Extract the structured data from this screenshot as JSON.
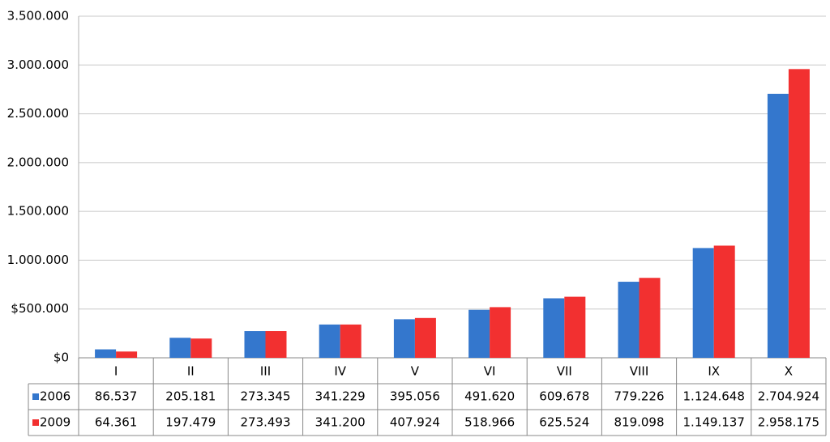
{
  "chart_data": {
    "type": "bar",
    "categories": [
      "I",
      "II",
      "III",
      "IV",
      "V",
      "VI",
      "VII",
      "VIII",
      "IX",
      "X"
    ],
    "series": [
      {
        "name": "2006",
        "color": "#3477cd",
        "values": [
          86537,
          205181,
          273345,
          341229,
          395056,
          491620,
          609678,
          779226,
          1124648,
          2704924
        ],
        "value_labels": [
          "86.537",
          "205.181",
          "273.345",
          "341.229",
          "395.056",
          "491.620",
          "609.678",
          "779.226",
          "1.124.648",
          "2.704.924"
        ]
      },
      {
        "name": "2009",
        "color": "#f23030",
        "values": [
          64361,
          197479,
          273493,
          341200,
          407924,
          518966,
          625524,
          819098,
          1149137,
          2958175
        ],
        "value_labels": [
          "64.361",
          "197.479",
          "273.493",
          "341.200",
          "407.924",
          "518.966",
          "625.524",
          "819.098",
          "1.149.137",
          "2.958.175"
        ]
      }
    ],
    "ylim": [
      0,
      3500000
    ],
    "yticks": [
      {
        "value": 0,
        "label": "$0"
      },
      {
        "value": 500000,
        "label": "$500.000"
      },
      {
        "value": 1000000,
        "label": "1.000.000"
      },
      {
        "value": 1500000,
        "label": "1.500.000"
      },
      {
        "value": 2000000,
        "label": "2.000.000"
      },
      {
        "value": 2500000,
        "label": "2.500.000"
      },
      {
        "value": 3000000,
        "label": "3.000.000"
      },
      {
        "value": 3500000,
        "label": "3.500.000"
      }
    ],
    "grid": true
  }
}
